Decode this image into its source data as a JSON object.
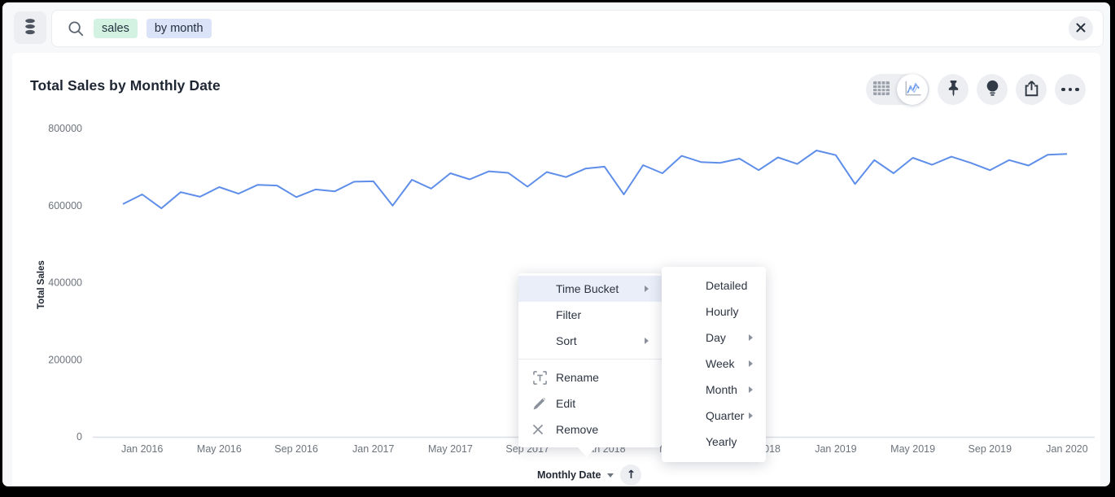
{
  "topbar": {
    "search": {
      "tokens": [
        {
          "text": "sales",
          "type": "measure-token"
        },
        {
          "text": "by month",
          "type": "attribute-token"
        }
      ]
    }
  },
  "header": {
    "title": "Total Sales by Monthly Date"
  },
  "toolbar": {
    "icons": [
      "table-view-icon",
      "chart-view-icon",
      "pin-icon",
      "lightbulb-icon",
      "share-icon",
      "more-options-icon"
    ],
    "active_view": "chart"
  },
  "icons": {
    "data-source": "database-cylinder",
    "search": "magnifier",
    "close": "x-cross",
    "sort-direction": "↑",
    "x-axis-caret": "▾"
  },
  "chart_data": {
    "type": "line",
    "title": "Total Sales by Monthly Date",
    "xlabel": "Monthly Date",
    "ylabel": "Total Sales",
    "line_color": "#5e8ee9",
    "grid": false,
    "legend": "none",
    "ylim": [
      0,
      800000
    ],
    "y_ticks": [
      0,
      200000,
      400000,
      600000,
      800000
    ],
    "y_tick_labels": [
      "0",
      "200000",
      "400000",
      "600000",
      "800000"
    ],
    "x_tick_labels": [
      "Jan 2016",
      "May 2016",
      "Sep 2016",
      "Jan 2017",
      "May 2017",
      "Sep 2017",
      "Jan 2018",
      "May 2018",
      "Sep 2018",
      "Jan 2019",
      "May 2019",
      "Sep 2019",
      "Jan 2020"
    ],
    "x": [
      "Dec 2015",
      "Jan 2016",
      "Feb 2016",
      "Mar 2016",
      "Apr 2016",
      "May 2016",
      "Jun 2016",
      "Jul 2016",
      "Aug 2016",
      "Sep 2016",
      "Oct 2016",
      "Nov 2016",
      "Dec 2016",
      "Jan 2017",
      "Feb 2017",
      "Mar 2017",
      "Apr 2017",
      "May 2017",
      "Jun 2017",
      "Jul 2017",
      "Aug 2017",
      "Sep 2017",
      "Oct 2017",
      "Nov 2017",
      "Dec 2017",
      "Jan 2018",
      "Feb 2018",
      "Mar 2018",
      "Apr 2018",
      "May 2018",
      "Jun 2018",
      "Jul 2018",
      "Aug 2018",
      "Sep 2018",
      "Oct 2018",
      "Nov 2018",
      "Dec 2018",
      "Jan 2019",
      "Feb 2019",
      "Mar 2019",
      "Apr 2019",
      "May 2019",
      "Jun 2019",
      "Jul 2019",
      "Aug 2019",
      "Sep 2019",
      "Oct 2019",
      "Nov 2019",
      "Dec 2019",
      "Jan 2020"
    ],
    "values": [
      604000,
      629000,
      593000,
      635000,
      623000,
      648000,
      631000,
      654000,
      652000,
      622000,
      642000,
      637000,
      662000,
      663000,
      600000,
      667000,
      644000,
      684000,
      668000,
      689000,
      685000,
      649000,
      687000,
      674000,
      696000,
      701000,
      629000,
      705000,
      684000,
      729000,
      713000,
      711000,
      722000,
      692000,
      725000,
      708000,
      743000,
      731000,
      656000,
      718000,
      684000,
      724000,
      706000,
      727000,
      711000,
      692000,
      718000,
      704000,
      732000,
      734000
    ]
  },
  "x_axis_control": {
    "label": "Monthly Date"
  },
  "context_menu": {
    "sections": [
      {
        "items": [
          {
            "label": "Time Bucket",
            "submenu_arrow": true,
            "highlighted": true
          },
          {
            "label": "Filter"
          },
          {
            "label": "Sort",
            "submenu_arrow": true
          }
        ]
      },
      {
        "items": [
          {
            "label": "Rename",
            "icon": "rename-icon"
          },
          {
            "label": "Edit",
            "icon": "edit-icon"
          },
          {
            "label": "Remove",
            "icon": "remove-icon"
          }
        ]
      }
    ]
  },
  "time_bucket_submenu": {
    "items": [
      {
        "label": "Detailed"
      },
      {
        "label": "Hourly"
      },
      {
        "label": "Day",
        "submenu_arrow": true
      },
      {
        "label": "Week",
        "submenu_arrow": true
      },
      {
        "label": "Month",
        "submenu_arrow": true
      },
      {
        "label": "Quarter",
        "submenu_arrow": true
      },
      {
        "label": "Yearly"
      }
    ]
  }
}
